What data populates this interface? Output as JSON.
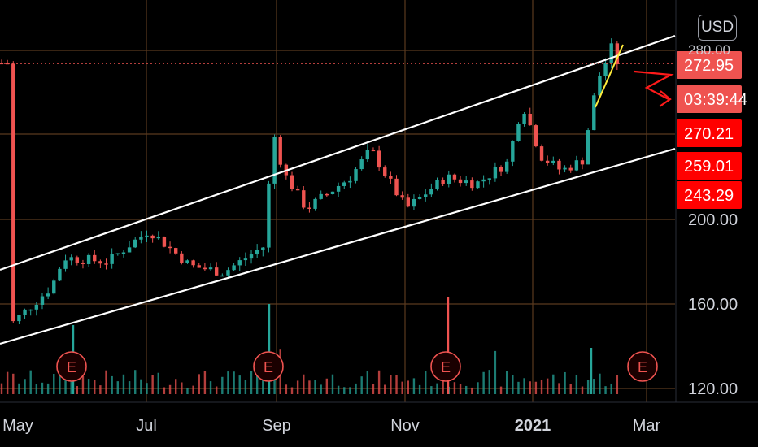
{
  "currency": "USD",
  "colors": {
    "up": "#26a69a",
    "down": "#ef5350",
    "grid": "#5a3a1f",
    "trendline": "#ffffff",
    "price_line": "#ef5350",
    "tag": "#ff0000",
    "annotation_yellow": "#ffeb3b",
    "annotation_red": "#ff1a1a"
  },
  "chart_data": {
    "type": "candlestick",
    "x_ticks": [
      "May",
      "Jul",
      "Sep",
      "Nov",
      "2021",
      "Mar"
    ],
    "y_ticks": [
      120,
      160,
      200
    ],
    "ylim": [
      115,
      300
    ],
    "grid": true,
    "price_tags": [
      {
        "label": "272.95",
        "style": "current"
      },
      {
        "label": "03:39:44",
        "style": "countdown"
      },
      {
        "label": "270.21",
        "style": "level"
      },
      {
        "label": "259.01",
        "style": "level"
      },
      {
        "label": "243.29",
        "style": "level"
      }
    ],
    "earnings_markers": [
      "E",
      "E",
      "E",
      "E"
    ],
    "price_path": [
      {
        "date": "2020-04-24",
        "close": 150
      },
      {
        "date": "2020-05-14",
        "close": 168
      },
      {
        "date": "2020-05-20",
        "close": 182
      },
      {
        "date": "2020-06-10",
        "close": 180
      },
      {
        "date": "2020-06-30",
        "close": 195
      },
      {
        "date": "2020-07-20",
        "close": 178
      },
      {
        "date": "2020-08-05",
        "close": 175
      },
      {
        "date": "2020-08-24",
        "close": 187
      },
      {
        "date": "2020-08-26",
        "close": 197
      },
      {
        "date": "2020-08-28",
        "close": 245
      },
      {
        "date": "2020-09-03",
        "close": 222
      },
      {
        "date": "2020-09-14",
        "close": 205
      },
      {
        "date": "2020-10-05",
        "close": 220
      },
      {
        "date": "2020-10-15",
        "close": 233
      },
      {
        "date": "2020-11-01",
        "close": 205
      },
      {
        "date": "2020-11-20",
        "close": 220
      },
      {
        "date": "2020-12-05",
        "close": 217
      },
      {
        "date": "2020-12-20",
        "close": 227
      },
      {
        "date": "2020-12-27",
        "close": 255
      },
      {
        "date": "2021-01-05",
        "close": 230
      },
      {
        "date": "2021-01-15",
        "close": 223
      },
      {
        "date": "2021-01-25",
        "close": 228
      },
      {
        "date": "2021-02-01",
        "close": 265
      },
      {
        "date": "2021-02-08",
        "close": 281
      },
      {
        "date": "2021-02-11",
        "close": 274
      }
    ]
  }
}
